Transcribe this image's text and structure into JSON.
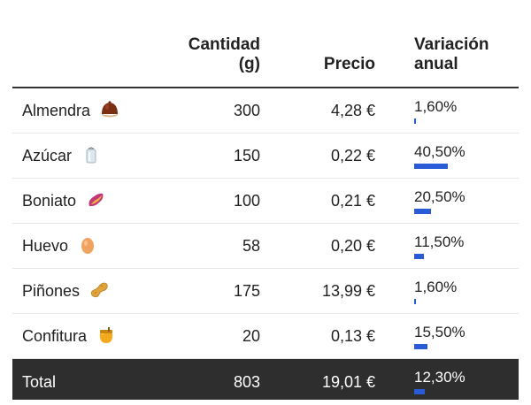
{
  "table": {
    "headers": {
      "qty_line1": "Cantidad",
      "qty_line2": "(g)",
      "price": "Precio",
      "var_line1": "Variación",
      "var_line2": "anual"
    },
    "rows": [
      {
        "name": "Almendra",
        "icon": "chestnut-icon",
        "qty": "300",
        "price": "4,28 €",
        "variation": "1,60%",
        "variation_value": 1.6
      },
      {
        "name": "Azúcar",
        "icon": "salt-shaker-icon",
        "qty": "150",
        "price": "0,22 €",
        "variation": "40,50%",
        "variation_value": 40.5
      },
      {
        "name": "Boniato",
        "icon": "sweet-potato-icon",
        "qty": "100",
        "price": "0,21 €",
        "variation": "20,50%",
        "variation_value": 20.5
      },
      {
        "name": "Huevo",
        "icon": "egg-icon",
        "qty": "58",
        "price": "0,20 €",
        "variation": "11,50%",
        "variation_value": 11.5
      },
      {
        "name": "Piñones",
        "icon": "peanut-icon",
        "qty": "175",
        "price": "13,99 €",
        "variation": "1,60%",
        "variation_value": 1.6
      },
      {
        "name": "Confitura",
        "icon": "honey-pot-icon",
        "qty": "20",
        "price": "0,13 €",
        "variation": "15,50%",
        "variation_value": 15.5
      }
    ],
    "total": {
      "name": "Total",
      "qty": "803",
      "price": "19,01 €",
      "variation": "12,30%",
      "variation_value": 12.3
    }
  },
  "colors": {
    "bar": "#2a5bd7",
    "total_bg": "#2e2e2e"
  }
}
